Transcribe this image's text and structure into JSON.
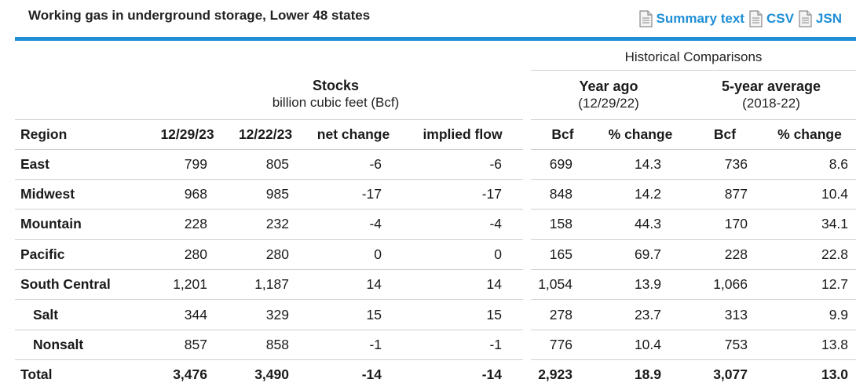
{
  "header": {
    "title": "Working gas in underground storage, Lower 48 states",
    "links": [
      {
        "label": "Summary text",
        "icon": "document-icon"
      },
      {
        "label": "CSV",
        "icon": "document-icon"
      },
      {
        "label": "JSN",
        "icon": "document-icon"
      }
    ],
    "accent_color": "#1f8fd6"
  },
  "table": {
    "historical_label": "Historical Comparisons",
    "stocks_group": {
      "title": "Stocks",
      "subtitle": "billion cubic feet (Bcf)"
    },
    "year_ago_group": {
      "title": "Year ago",
      "subtitle": "(12/29/22)"
    },
    "five_year_group": {
      "title": "5-year average",
      "subtitle": "(2018-22)"
    },
    "columns": [
      "Region",
      "12/29/23",
      "12/22/23",
      "net change",
      "implied flow",
      "Bcf",
      "% change",
      "Bcf",
      "% change"
    ],
    "rows": [
      {
        "region": "East",
        "sub": false,
        "values": [
          "799",
          "805",
          "-6",
          "-6",
          "699",
          "14.3",
          "736",
          "8.6"
        ]
      },
      {
        "region": "Midwest",
        "sub": false,
        "values": [
          "968",
          "985",
          "-17",
          "-17",
          "848",
          "14.2",
          "877",
          "10.4"
        ]
      },
      {
        "region": "Mountain",
        "sub": false,
        "values": [
          "228",
          "232",
          "-4",
          "-4",
          "158",
          "44.3",
          "170",
          "34.1"
        ]
      },
      {
        "region": "Pacific",
        "sub": false,
        "values": [
          "280",
          "280",
          "0",
          "0",
          "165",
          "69.7",
          "228",
          "22.8"
        ]
      },
      {
        "region": "South Central",
        "sub": false,
        "values": [
          "1,201",
          "1,187",
          "14",
          "14",
          "1,054",
          "13.9",
          "1,066",
          "12.7"
        ]
      },
      {
        "region": "Salt",
        "sub": true,
        "values": [
          "344",
          "329",
          "15",
          "15",
          "278",
          "23.7",
          "313",
          "9.9"
        ]
      },
      {
        "region": "Nonsalt",
        "sub": true,
        "values": [
          "857",
          "858",
          "-1",
          "-1",
          "776",
          "10.4",
          "753",
          "13.8"
        ]
      }
    ],
    "total": {
      "region": "Total",
      "values": [
        "3,476",
        "3,490",
        "-14",
        "-14",
        "2,923",
        "18.9",
        "3,077",
        "13.0"
      ]
    }
  }
}
